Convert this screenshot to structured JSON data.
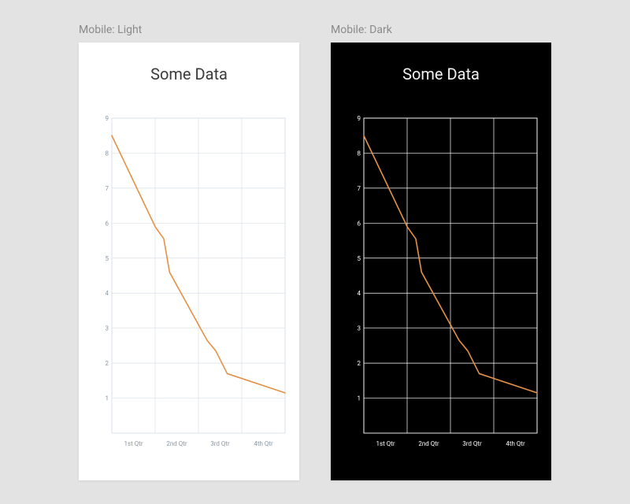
{
  "page_background": "#e3e3e3",
  "panels": [
    {
      "label": "Mobile: Light",
      "theme": {
        "background": "#ffffff",
        "title_color": "#3a3a3a",
        "grid_color": "#d9e0e8",
        "axis_color": "#d9e0e8",
        "tick_label_color": "#8a96a3",
        "line_color": "#e59146",
        "line_width": 1.6
      },
      "chart": {
        "type": "line",
        "title": "Some Data",
        "title_fontsize": 20,
        "ylim": [
          0,
          9
        ],
        "yticks": [
          1,
          2,
          3,
          4,
          5,
          6,
          7,
          8,
          9
        ],
        "categories": [
          "1st Qtr",
          "2nd Qtr",
          "3rd Qtr",
          "4th Qtr"
        ],
        "points": [
          {
            "x": 0.0,
            "y": 8.5
          },
          {
            "x": 0.25,
            "y": 5.9
          },
          {
            "x": 0.3,
            "y": 5.55
          },
          {
            "x": 0.333,
            "y": 4.6
          },
          {
            "x": 0.55,
            "y": 2.65
          },
          {
            "x": 0.6,
            "y": 2.35
          },
          {
            "x": 0.666,
            "y": 1.7
          },
          {
            "x": 1.0,
            "y": 1.15
          }
        ]
      }
    },
    {
      "label": "Mobile: Dark",
      "theme": {
        "background": "#000000",
        "title_color": "#f2f2f2",
        "grid_color": "#ffffff",
        "axis_color": "#ffffff",
        "tick_label_color": "#ffffff",
        "line_color": "#e59146",
        "line_width": 1.6
      },
      "chart": {
        "type": "line",
        "title": "Some Data",
        "title_fontsize": 20,
        "ylim": [
          0,
          9
        ],
        "yticks": [
          1,
          2,
          3,
          4,
          5,
          6,
          7,
          8,
          9
        ],
        "categories": [
          "1st Qtr",
          "2nd Qtr",
          "3rd Qtr",
          "4th Qtr"
        ],
        "points": [
          {
            "x": 0.0,
            "y": 8.5
          },
          {
            "x": 0.25,
            "y": 5.9
          },
          {
            "x": 0.3,
            "y": 5.55
          },
          {
            "x": 0.333,
            "y": 4.6
          },
          {
            "x": 0.55,
            "y": 2.65
          },
          {
            "x": 0.6,
            "y": 2.35
          },
          {
            "x": 0.666,
            "y": 1.7
          },
          {
            "x": 1.0,
            "y": 1.15
          }
        ]
      }
    }
  ]
}
